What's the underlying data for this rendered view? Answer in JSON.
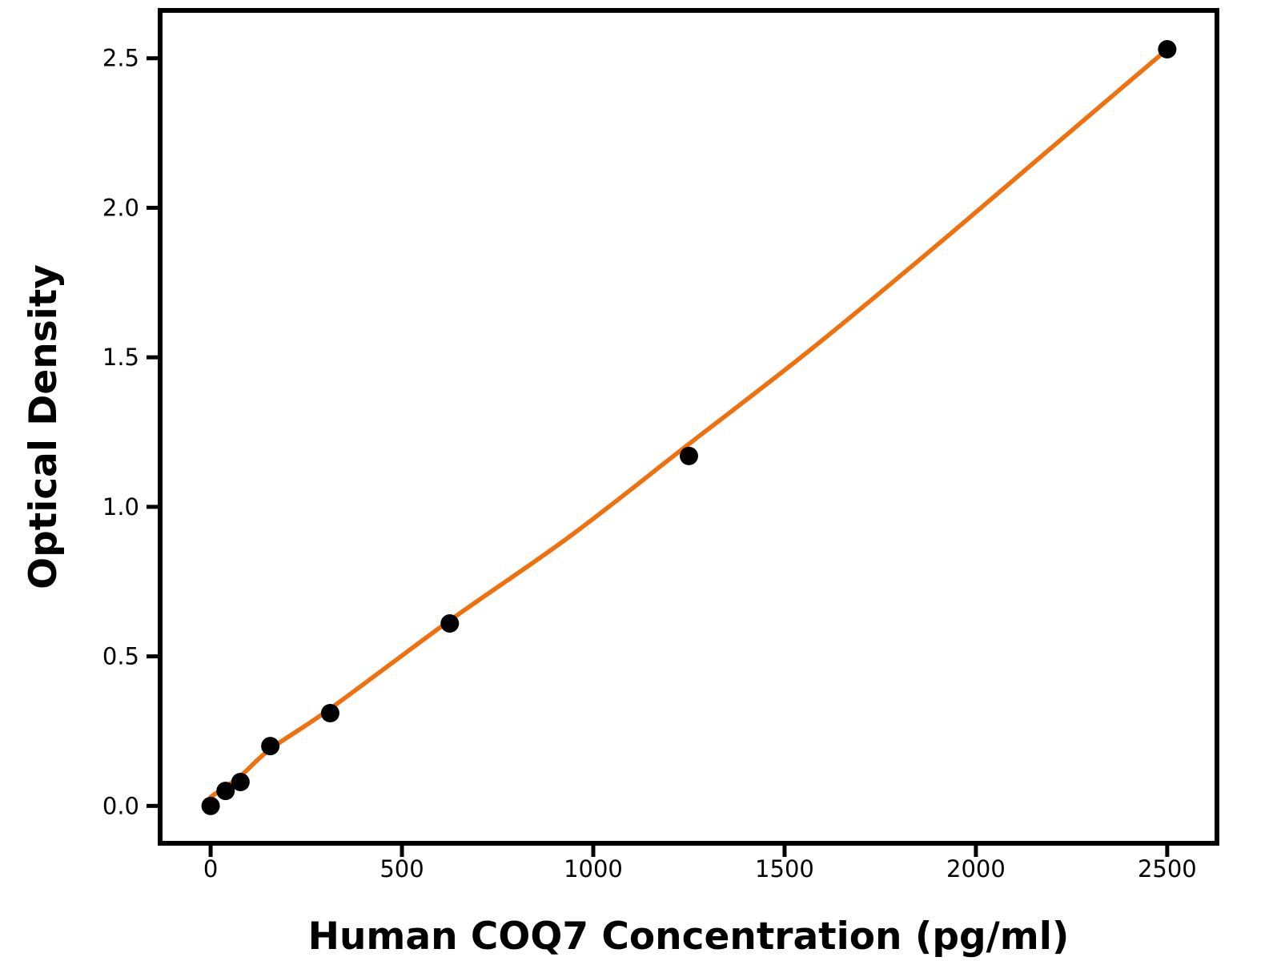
{
  "chart_data": {
    "type": "scatter",
    "title": "",
    "xlabel": "Human COQ7 Concentration (pg/ml)",
    "ylabel": "Optical Density",
    "series": [
      {
        "name": "standard-points",
        "role": "markers",
        "marker": "filled-circle",
        "color": "#000000",
        "x": [
          0,
          39,
          78,
          156,
          312.5,
          625,
          1250,
          2500
        ],
        "y": [
          0.0,
          0.05,
          0.08,
          0.2,
          0.31,
          0.61,
          1.17,
          2.53
        ]
      },
      {
        "name": "fit-curve",
        "role": "line",
        "color": "#F0700E",
        "x": [
          0,
          78,
          156,
          312.5,
          625,
          937.5,
          1250,
          1562.5,
          1875,
          2187.5,
          2500
        ],
        "y": [
          0.03,
          0.1,
          0.19,
          0.325,
          0.62,
          0.9,
          1.21,
          1.52,
          1.85,
          2.19,
          2.53
        ]
      }
    ],
    "xlim": [
      -132,
      2630
    ],
    "ylim": [
      -0.125,
      2.66
    ],
    "x_tick_values": [
      0,
      500,
      1000,
      1500,
      2000,
      2500
    ],
    "x_tick_labels": [
      "0",
      "500",
      "1000",
      "1500",
      "2000",
      "2500"
    ],
    "y_tick_values": [
      0,
      0.5,
      1.0,
      1.5,
      2.0,
      2.5
    ],
    "y_tick_labels": [
      "0.0",
      "0.5",
      "1.0",
      "1.5",
      "2.0",
      "2.5"
    ],
    "grid": false,
    "legend": "none",
    "axis_color": "#000000",
    "background": "#ffffff"
  }
}
